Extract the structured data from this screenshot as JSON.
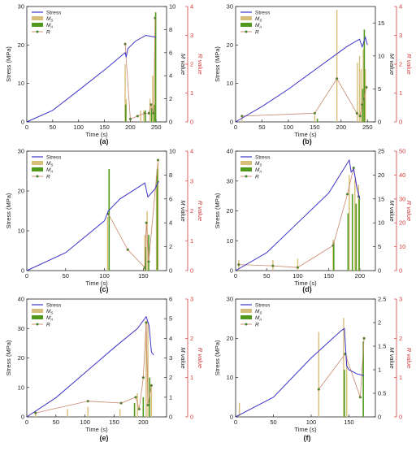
{
  "figure": {
    "panels": [
      {
        "id": "a",
        "caption": "(a)",
        "legend_style": "a"
      },
      {
        "id": "b",
        "caption": "(b)",
        "legend_style": "a"
      },
      {
        "id": "c",
        "caption": "(c)",
        "legend_style": "a"
      },
      {
        "id": "d",
        "caption": "(d)",
        "legend_style": "b"
      },
      {
        "id": "e",
        "caption": "(e)",
        "legend_style": "b"
      },
      {
        "id": "f",
        "caption": "(f)",
        "legend_style": "b"
      }
    ],
    "legend_labels": {
      "stress": "Stress",
      "ms_main": "M",
      "ms_sub": "S",
      "ma_main": "M",
      "ma_sub": "A",
      "r": "R"
    }
  },
  "colors": {
    "stress": "#3d34c8",
    "ms": "#d8bf79",
    "ma": "#4f9a1d",
    "r": "#c9866d",
    "r_marker": "#3a8a2c",
    "r_axis": "#d33a3a",
    "axis": "#222222"
  },
  "chart_data": [
    {
      "id": "a",
      "type": "line",
      "xlabel": "Time (s)",
      "ylabel": "Stress (MPa)",
      "y2label": "M value",
      "y3label": "R value",
      "xlim": [
        0,
        270
      ],
      "xticks": [
        0,
        50,
        100,
        150,
        200,
        250
      ],
      "ylim": [
        0,
        30
      ],
      "yticks": [
        0,
        10,
        20,
        30
      ],
      "m_lim": [
        0,
        10
      ],
      "m_ticks": [
        0,
        2,
        4,
        6,
        8,
        10
      ],
      "r_lim": [
        0,
        4
      ],
      "r_ticks": [
        0,
        1,
        2,
        3,
        4
      ],
      "stress": {
        "x": [
          0,
          50,
          100,
          150,
          190,
          192,
          195,
          210,
          230,
          250
        ],
        "y": [
          0,
          3,
          8.2,
          13.5,
          18,
          16.8,
          19,
          21,
          22.5,
          22
        ]
      },
      "ms": {
        "x": [
          190,
          192,
          220,
          226,
          238,
          243,
          248
        ],
        "y": [
          5,
          2,
          1,
          1,
          2,
          4,
          9
        ]
      },
      "ma": {
        "x": [
          191,
          229,
          241,
          246,
          249
        ],
        "y": [
          1.5,
          1,
          1.2,
          1.5,
          9.5
        ]
      },
      "r": {
        "x": [
          190,
          200,
          214,
          228,
          236,
          240,
          245,
          248
        ],
        "y": [
          2.7,
          0.1,
          0.2,
          0.3,
          0.3,
          0.6,
          0.3,
          3.6
        ]
      }
    },
    {
      "id": "b",
      "type": "line",
      "xlabel": "Time (s)",
      "ylabel": "Stress (MPa)",
      "y2label": "M value",
      "y3label": "R value",
      "xlim": [
        0,
        265
      ],
      "xticks": [
        0,
        50,
        100,
        150,
        200,
        250
      ],
      "ylim": [
        0,
        30
      ],
      "yticks": [
        0,
        10,
        20,
        30
      ],
      "m_lim": [
        0,
        17.5
      ],
      "m_ticks": [
        0,
        5,
        10,
        15
      ],
      "r_lim": [
        0,
        4
      ],
      "r_ticks": [
        0,
        1,
        2,
        3,
        4
      ],
      "stress": {
        "x": [
          0,
          50,
          100,
          150,
          190,
          210,
          235,
          240,
          246,
          250
        ],
        "y": [
          0,
          4,
          8.5,
          13.5,
          17.5,
          19.5,
          21.5,
          19.5,
          22,
          20
        ]
      },
      "ms": {
        "x": [
          12,
          150,
          192,
          231,
          235,
          238,
          242,
          246
        ],
        "y": [
          1,
          1,
          17,
          9,
          10,
          8,
          11,
          8
        ]
      },
      "ma": {
        "x": [
          155,
          241,
          244
        ],
        "y": [
          0.5,
          5,
          14
        ]
      },
      "r": {
        "x": [
          12,
          150,
          192,
          230,
          236,
          240,
          243,
          248
        ],
        "y": [
          0.2,
          0.3,
          1.5,
          0.3,
          0.2,
          0.6,
          0.8,
          1.2
        ]
      }
    },
    {
      "id": "c",
      "type": "line",
      "xlabel": "Time (s)",
      "ylabel": "Stress (MPa)",
      "y2label": "M value",
      "y3label": "R value",
      "xlim": [
        0,
        180
      ],
      "xticks": [
        0,
        50,
        100,
        150
      ],
      "ylim": [
        0,
        30
      ],
      "yticks": [
        0,
        10,
        20,
        30
      ],
      "m_lim": [
        0,
        10
      ],
      "m_ticks": [
        0,
        2,
        4,
        6,
        8,
        10
      ],
      "r_lim": [
        0,
        4
      ],
      "r_ticks": [
        0,
        1,
        2,
        3,
        4
      ],
      "stress": {
        "x": [
          0,
          50,
          100,
          105,
          120,
          140,
          152,
          156,
          165,
          170
        ],
        "y": [
          0,
          4.5,
          12.5,
          15,
          18,
          20.5,
          22,
          18.5,
          20.5,
          22.5
        ]
      },
      "ms": {
        "x": [
          104,
          152,
          155,
          167,
          169
        ],
        "y": [
          4.5,
          3,
          5,
          8,
          9
        ]
      },
      "ma": {
        "x": [
          106,
          153,
          157,
          168
        ],
        "y": [
          8.5,
          2,
          3,
          8.5
        ]
      },
      "r": {
        "x": [
          105,
          130,
          152,
          154,
          157,
          169
        ],
        "y": [
          1.9,
          0.7,
          0.1,
          1.6,
          0.3,
          3.7
        ]
      }
    },
    {
      "id": "d",
      "type": "line",
      "xlabel": "Time (s)",
      "ylabel": "Stress (MPa)",
      "y2label": "M value",
      "y3label": "R value",
      "xlim": [
        0,
        225
      ],
      "xticks": [
        0,
        50,
        100,
        150,
        200
      ],
      "ylim": [
        0,
        40
      ],
      "yticks": [
        0,
        10,
        20,
        30,
        40
      ],
      "m_lim": [
        0,
        25
      ],
      "m_ticks": [
        0,
        5,
        10,
        15,
        20,
        25
      ],
      "r_lim": [
        0,
        50
      ],
      "r_ticks": [
        0,
        10,
        20,
        30,
        40,
        50
      ],
      "stress": {
        "x": [
          0,
          50,
          100,
          150,
          183,
          186,
          190,
          195,
          200
        ],
        "y": [
          0,
          6,
          16,
          26,
          37,
          33,
          34,
          28,
          24
        ]
      },
      "ms": {
        "x": [
          5,
          60,
          100,
          157,
          183,
          192,
          198
        ],
        "y": [
          2.2,
          2.2,
          2.5,
          6.5,
          20,
          19,
          18
        ]
      },
      "ma": {
        "x": [
          158,
          181,
          188,
          194,
          199
        ],
        "y": [
          6,
          12,
          16,
          14,
          15
        ]
      },
      "r": {
        "x": [
          5,
          60,
          100,
          157,
          180,
          190,
          198
        ],
        "y": [
          2.5,
          2,
          1.3,
          10.5,
          32,
          43,
          31
        ]
      }
    },
    {
      "id": "e",
      "type": "line",
      "xlabel": "Time (s)",
      "ylabel": "Stress (MPa)",
      "y2label": "M value",
      "y3label": "R value",
      "xlim": [
        0,
        240
      ],
      "xticks": [
        0,
        50,
        100,
        150,
        200
      ],
      "ylim": [
        0,
        40
      ],
      "yticks": [
        0,
        10,
        20,
        30,
        40
      ],
      "m_lim": [
        0,
        6
      ],
      "m_ticks": [
        0,
        1,
        2,
        3,
        4,
        5,
        6
      ],
      "r_lim": [
        0,
        3
      ],
      "r_ticks": [
        0,
        1,
        2,
        3
      ],
      "stress": {
        "x": [
          0,
          50,
          100,
          150,
          190,
          205,
          210,
          214,
          218
        ],
        "y": [
          0,
          6.5,
          15,
          23.5,
          30,
          34,
          31,
          22,
          21
        ]
      },
      "ms": {
        "x": [
          15,
          70,
          105,
          160,
          190,
          205,
          208,
          214
        ],
        "y": [
          0.3,
          0.4,
          0.5,
          0.4,
          1.2,
          4.9,
          4.8,
          1.5
        ]
      },
      "ma": {
        "x": [
          185,
          200,
          211
        ],
        "y": [
          0.7,
          1,
          2
        ]
      },
      "r": {
        "x": [
          15,
          105,
          162,
          187,
          193,
          200,
          205,
          208,
          214
        ],
        "y": [
          0.1,
          0.4,
          0.35,
          0.5,
          0.2,
          1,
          2.4,
          0.3,
          0.8
        ]
      }
    },
    {
      "id": "f",
      "type": "line",
      "xlabel": "Time (s)",
      "ylabel": "Stress (MPa)",
      "y2label": "M value",
      "y3label": "R value",
      "xlim": [
        0,
        185
      ],
      "xticks": [
        0,
        50,
        100,
        150
      ],
      "ylim": [
        0,
        30
      ],
      "yticks": [
        0,
        10,
        20,
        30
      ],
      "m_lim": [
        0,
        2.5
      ],
      "m_ticks": [
        0,
        0.5,
        1,
        1.5,
        2,
        2.5
      ],
      "r_lim": [
        0,
        3
      ],
      "r_ticks": [
        0,
        1,
        2,
        3
      ],
      "stress": {
        "x": [
          0,
          50,
          100,
          140,
          144,
          147,
          150,
          160,
          170
        ],
        "y": [
          0,
          5,
          15,
          22,
          22.5,
          13,
          12,
          11,
          10.5
        ]
      },
      "ms": {
        "x": [
          5,
          110,
          143,
          147
        ],
        "y": [
          0.3,
          1.8,
          2.1,
          1.3
        ]
      },
      "ma": {
        "x": [
          144,
          169
        ],
        "y": [
          1,
          1.6
        ]
      },
      "r": {
        "x": [
          110,
          145,
          165,
          170
        ],
        "y": [
          0.7,
          1.6,
          0.5,
          2
        ]
      }
    }
  ]
}
